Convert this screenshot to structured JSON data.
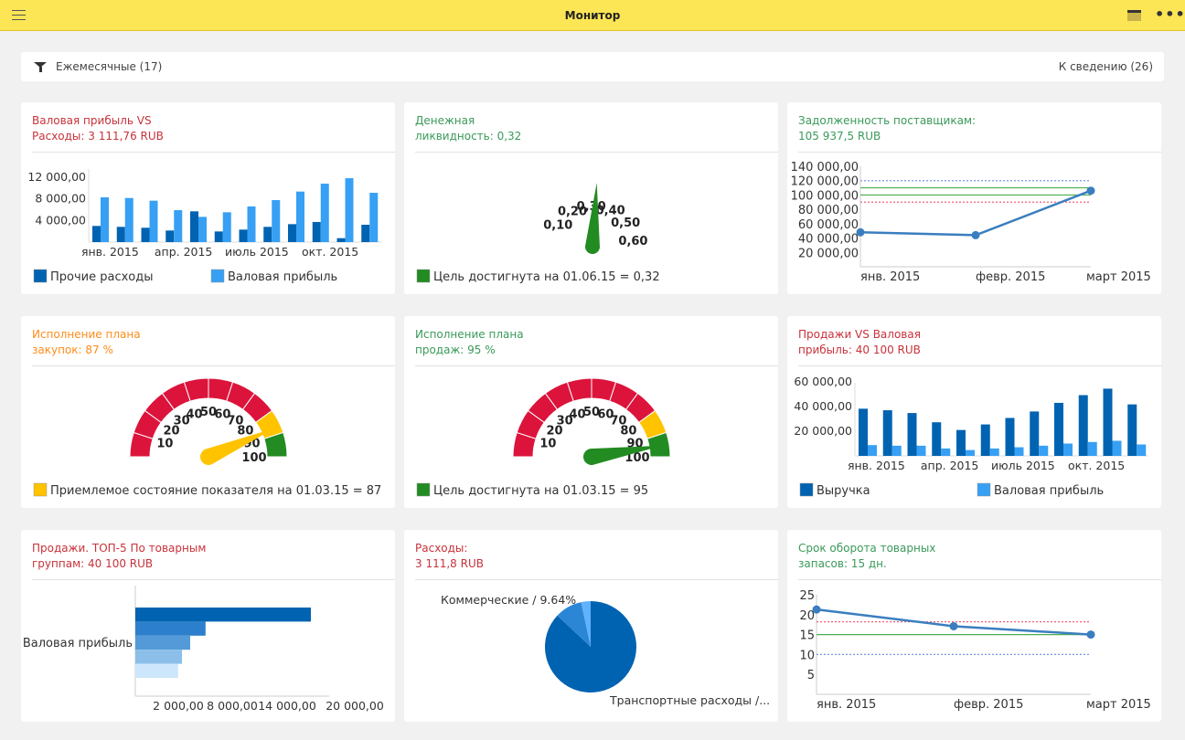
{
  "app": {
    "title": "Монитор",
    "menu_icon": "hamburger-icon",
    "panel_icon": "panel-icon",
    "more_icon": "more-icon"
  },
  "filter": {
    "label": "Ежемесячные (17)",
    "info": "К сведению (26)",
    "icon": "filter-icon"
  },
  "colors": {
    "red": "#dc143c",
    "yellow": "#ffc300",
    "green": "#228b22",
    "dark_blue": "#0063b1",
    "light_blue": "#37a0f4"
  },
  "cards": [
    {
      "title1": "Валовая прибыль VS",
      "title2": "Расходы: 3 111,76 RUB"
    },
    {
      "title1": "Денежная",
      "title2": "ликвидность: 0,32"
    },
    {
      "title1": "Задолженность поставщикам:",
      "title2": "105 937,5 RUB"
    },
    {
      "title1": "Исполнение плана",
      "title2": "закупок: 87 %"
    },
    {
      "title1": "Исполнение плана",
      "title2": "продаж: 95 %"
    },
    {
      "title1": "Продажи VS Валовая",
      "title2": "прибыль: 40 100 RUB"
    },
    {
      "title1": "Продажи. ТОП-5 По товарным",
      "title2": "группам: 40 100 RUB"
    },
    {
      "title1": "Расходы:",
      "title2": "3 111,8 RUB"
    },
    {
      "title1": "Срок оборота товарных",
      "title2": "запасов: 15 дн."
    }
  ],
  "chart_data": [
    {
      "type": "bar",
      "ylim": [
        0,
        12000
      ],
      "yticks": [
        "4 000,00",
        "8 000,00",
        "12 000,00"
      ],
      "ytick_values": [
        4000,
        8000,
        12000
      ],
      "xtick_labels": [
        "янв. 2015",
        "апр. 2015",
        "июль 2015",
        "окт. 2015"
      ],
      "xtick_index": [
        0,
        3,
        6,
        9
      ],
      "series": [
        {
          "name": "Прочие расходы",
          "color": "#0063b1",
          "values": [
            2990,
            2820,
            2650,
            2140,
            5690,
            1970,
            2310,
            2820,
            3320,
            3720,
            730,
            3210
          ]
        },
        {
          "name": "Валовая прибыль",
          "color": "#37a0f4",
          "values": [
            8280,
            8160,
            7660,
            5910,
            4670,
            5520,
            6590,
            7770,
            9350,
            10810,
            11820,
            9120
          ]
        }
      ]
    },
    {
      "type": "gauge",
      "value": 0.32,
      "ticks": [
        "0,10",
        "0,20",
        "0,30",
        "0,40",
        "0,50",
        "0,60"
      ],
      "tick_values": [
        0.1,
        0.2,
        0.3,
        0.4,
        0.5,
        0.6
      ],
      "needle_color": "#228b22",
      "legend": "Цель достигнута на 01.06.15 = 0,32",
      "legend_color": "#228b22"
    },
    {
      "type": "line",
      "ylim": [
        0,
        140000
      ],
      "yticks": [
        "20 000,00",
        "40 000,00",
        "60 000,00",
        "80 000,00",
        "100 000,00",
        "120 000,00",
        "140 000,00"
      ],
      "ytick_values": [
        20000,
        40000,
        60000,
        80000,
        100000,
        120000,
        140000
      ],
      "categories": [
        "янв. 2015",
        "февр. 2015",
        "март 2015"
      ],
      "values": [
        48000,
        44000,
        106000
      ],
      "ref_lines": [
        {
          "value": 120000,
          "color": "#7a96e6",
          "style": "dotted"
        },
        {
          "value": 110000,
          "color": "#4caf50",
          "style": "solid"
        },
        {
          "value": 100000,
          "color": "#4caf50",
          "style": "solid"
        },
        {
          "value": 90000,
          "color": "#f0607a",
          "style": "dotted"
        }
      ]
    },
    {
      "type": "gauge",
      "value": 87,
      "range": [
        0,
        100
      ],
      "ticks": [
        "10",
        "20",
        "30",
        "40",
        "50",
        "60",
        "70",
        "80",
        "90",
        "100"
      ],
      "tick_values": [
        10,
        20,
        30,
        40,
        50,
        60,
        70,
        80,
        90,
        100
      ],
      "bands": [
        {
          "from": 0,
          "to": 80,
          "color": "#dc143c"
        },
        {
          "from": 80,
          "to": 90,
          "color": "#ffc300"
        },
        {
          "from": 90,
          "to": 100,
          "color": "#228b22"
        }
      ],
      "needle_color": "#ffc300",
      "legend": "Приемлемое состояние показателя на 01.03.15 = 87",
      "legend_color": "#ffc300"
    },
    {
      "type": "gauge",
      "value": 95,
      "range": [
        0,
        100
      ],
      "ticks": [
        "10",
        "20",
        "30",
        "40",
        "50",
        "60",
        "70",
        "80",
        "90",
        "100"
      ],
      "tick_values": [
        10,
        20,
        30,
        40,
        50,
        60,
        70,
        80,
        90,
        100
      ],
      "bands": [
        {
          "from": 0,
          "to": 80,
          "color": "#dc143c"
        },
        {
          "from": 80,
          "to": 90,
          "color": "#ffc300"
        },
        {
          "from": 90,
          "to": 100,
          "color": "#228b22"
        }
      ],
      "needle_color": "#228b22",
      "legend": "Цель достигнута на 01.03.15 = 95",
      "legend_color": "#228b22"
    },
    {
      "type": "bar",
      "ylim": [
        0,
        60000
      ],
      "yticks": [
        "20 000,00",
        "40 000,00",
        "60 000,00"
      ],
      "ytick_values": [
        20000,
        40000,
        60000
      ],
      "xtick_labels": [
        "янв. 2015",
        "апр. 2015",
        "июль 2015",
        "окт. 2015"
      ],
      "xtick_index": [
        0,
        3,
        6,
        9
      ],
      "series": [
        {
          "name": "Выручка",
          "color": "#0063b1",
          "values": [
            38250,
            37000,
            34750,
            27250,
            21000,
            25500,
            30750,
            36000,
            43000,
            49250,
            54500,
            41750
          ]
        },
        {
          "name": "Валовая прибыль",
          "color": "#37a0f4",
          "values": [
            8750,
            8250,
            8250,
            6000,
            4750,
            6000,
            7000,
            8250,
            10000,
            11250,
            12250,
            9250
          ]
        }
      ]
    },
    {
      "type": "bar",
      "orientation": "horizontal",
      "category": "Валовая прибыль",
      "xlim": [
        0,
        20000
      ],
      "xticks": [
        "2 000,00",
        "8 000,00",
        "14 000,00",
        "20 000,00"
      ],
      "values": [
        16000,
        6400,
        5000,
        4250,
        3900
      ],
      "colors": [
        "#0063b1",
        "#2b7fcc",
        "#559ad8",
        "#8bbfe9",
        "#cde6fb"
      ]
    },
    {
      "type": "pie",
      "slices": [
        {
          "label": "Транспортные расходы /...",
          "value": 87.0,
          "color": "#0063b1"
        },
        {
          "label": "Коммерческие / 9.64%",
          "value": 9.64,
          "color": "#2b86d6"
        },
        {
          "label": "",
          "value": 3.36,
          "color": "#5fb2fb"
        }
      ]
    },
    {
      "type": "line",
      "ylim": [
        0,
        25
      ],
      "yticks": [
        "5",
        "10",
        "15",
        "20",
        "25"
      ],
      "ytick_values": [
        5,
        10,
        15,
        20,
        25
      ],
      "categories": [
        "янв. 2015",
        "февр. 2015",
        "март 2015"
      ],
      "values": [
        21.3,
        17.1,
        15
      ],
      "ref_lines": [
        {
          "value": 18.2,
          "color": "#f0607a",
          "style": "dotted"
        },
        {
          "value": 15,
          "color": "#4caf50",
          "style": "solid"
        },
        {
          "value": 10,
          "color": "#7a96e6",
          "style": "dotted"
        }
      ]
    }
  ]
}
